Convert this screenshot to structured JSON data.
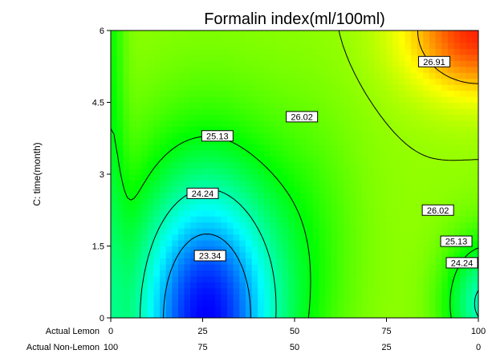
{
  "chart_data": {
    "type": "contour",
    "title": "Formalin index(ml/100ml)",
    "ylabel": "C: time(month)",
    "xlabel_rows": [
      {
        "label": "Actual Lemon",
        "ticks": [
          "0",
          "25",
          "50",
          "75",
          "100"
        ]
      },
      {
        "label": "Actual Non-Lemon",
        "ticks": [
          "100",
          "75",
          "50",
          "25",
          "0"
        ]
      }
    ],
    "xlim": [
      0,
      100
    ],
    "ylim": [
      0,
      6
    ],
    "y_ticks": [
      "0",
      "1.5",
      "3",
      "4.5",
      "6"
    ],
    "y_tick_values": [
      0,
      1.5,
      3,
      4.5,
      6
    ],
    "x_tick_values": [
      0,
      25,
      50,
      75,
      100
    ],
    "color_scale": [
      "#0000ff",
      "#00ffff",
      "#00ff00",
      "#ffff00",
      "#ff0000"
    ],
    "contour_labels": [
      {
        "text": "26.91",
        "x": 88,
        "y": 5.35
      },
      {
        "text": "26.02",
        "x": 52,
        "y": 4.2
      },
      {
        "text": "25.13",
        "x": 29,
        "y": 3.8
      },
      {
        "text": "24.24",
        "x": 25,
        "y": 2.6
      },
      {
        "text": "23.34",
        "x": 27,
        "y": 1.3
      },
      {
        "text": "26.02",
        "x": 89,
        "y": 2.25
      },
      {
        "text": "25.13",
        "x": 94,
        "y": 1.6
      },
      {
        "text": "24.24",
        "x": 97,
        "y": 1.15
      }
    ]
  }
}
